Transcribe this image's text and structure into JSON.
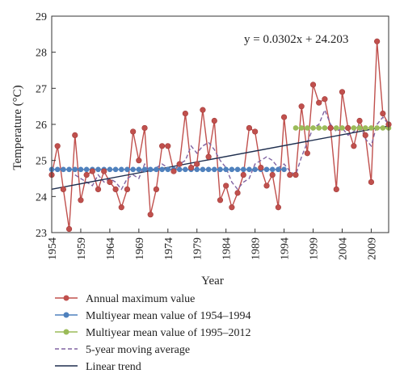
{
  "chart_data": {
    "type": "line",
    "xlabel": "Year",
    "ylabel": "Temperature (°C)",
    "xlim": [
      1954,
      2012
    ],
    "ylim": [
      23,
      29
    ],
    "xticks": [
      "1954",
      "1959",
      "1964",
      "1969",
      "1974",
      "1979",
      "1984",
      "1989",
      "1994",
      "1999",
      "2004",
      "2009"
    ],
    "yticks": [
      "23",
      "24",
      "25",
      "26",
      "27",
      "28",
      "29"
    ],
    "equation": "y = 0.0302x + 24.203",
    "grid": false,
    "legend_position": "bottom",
    "series": [
      {
        "name": "Annual maximum value",
        "kind": "line-marker",
        "color": "#c0504d",
        "x": [
          1954,
          1955,
          1956,
          1957,
          1958,
          1959,
          1960,
          1961,
          1962,
          1963,
          1964,
          1965,
          1966,
          1967,
          1968,
          1969,
          1970,
          1971,
          1972,
          1973,
          1974,
          1975,
          1976,
          1977,
          1978,
          1979,
          1980,
          1981,
          1982,
          1983,
          1984,
          1985,
          1986,
          1987,
          1988,
          1989,
          1990,
          1991,
          1992,
          1993,
          1994,
          1995,
          1996,
          1997,
          1998,
          1999,
          2000,
          2001,
          2002,
          2003,
          2004,
          2005,
          2006,
          2007,
          2008,
          2009,
          2010,
          2011,
          2012
        ],
        "y": [
          24.6,
          25.4,
          24.2,
          23.1,
          25.7,
          23.9,
          24.6,
          24.7,
          24.2,
          24.7,
          24.4,
          24.2,
          23.7,
          24.2,
          25.8,
          25.0,
          25.9,
          23.5,
          24.2,
          25.4,
          25.4,
          24.7,
          24.9,
          26.3,
          24.8,
          24.9,
          26.4,
          25.1,
          26.1,
          23.9,
          24.3,
          23.7,
          24.1,
          24.6,
          25.9,
          25.8,
          24.8,
          24.3,
          24.6,
          23.7,
          26.2,
          24.6,
          24.6,
          26.5,
          25.2,
          27.1,
          26.6,
          26.7,
          25.9,
          24.2,
          26.9,
          25.9,
          25.4,
          26.1,
          25.7,
          24.4,
          28.3,
          26.3,
          26.0
        ]
      },
      {
        "name": "Multiyear mean value of 1954–1994",
        "kind": "marker-line",
        "color": "#4f81bd",
        "x_range": [
          1954,
          1994
        ],
        "value": 24.75
      },
      {
        "name": "Multiyear mean value of 1995–2012",
        "kind": "marker-line",
        "color": "#9bbb59",
        "x_range": [
          1996,
          2012
        ],
        "value": 25.9
      },
      {
        "name": "5-year moving average",
        "kind": "dashed",
        "color": "#8064a2",
        "x": [
          1958,
          1959,
          1960,
          1961,
          1962,
          1963,
          1964,
          1965,
          1966,
          1967,
          1968,
          1969,
          1970,
          1971,
          1972,
          1973,
          1974,
          1975,
          1976,
          1977,
          1978,
          1979,
          1980,
          1981,
          1982,
          1983,
          1984,
          1985,
          1986,
          1987,
          1988,
          1989,
          1990,
          1991,
          1992,
          1993,
          1994,
          1995,
          1996,
          1997,
          1998,
          1999,
          2000,
          2001,
          2002,
          2003,
          2004,
          2005,
          2006,
          2007,
          2008,
          2009,
          2010,
          2011,
          2012
        ],
        "y": [
          24.6,
          24.5,
          24.4,
          24.3,
          24.6,
          24.4,
          24.5,
          24.4,
          24.2,
          24.5,
          24.6,
          24.5,
          24.9,
          24.7,
          24.8,
          24.9,
          24.8,
          24.7,
          24.9,
          25.0,
          25.4,
          25.2,
          25.4,
          25.5,
          25.3,
          25.0,
          24.8,
          24.4,
          24.2,
          24.4,
          24.5,
          24.9,
          25.0,
          25.1,
          25.0,
          24.8,
          24.9,
          24.7,
          24.6,
          25.1,
          25.5,
          25.9,
          26.0,
          26.4,
          26.0,
          25.8,
          25.9,
          25.7,
          25.8,
          26.0,
          25.6,
          25.4,
          26.0,
          26.2,
          26.0
        ]
      },
      {
        "name": "Linear trend",
        "kind": "line",
        "color": "#1f2f4f",
        "slope": 0.0302,
        "intercept": 24.203
      }
    ]
  }
}
